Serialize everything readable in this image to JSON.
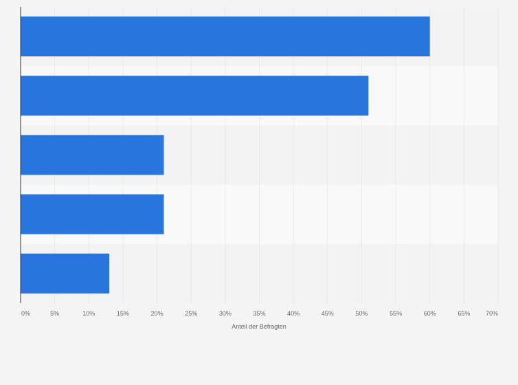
{
  "chart_data": {
    "type": "bar",
    "orientation": "horizontal",
    "categories": [
      "",
      "",
      "",
      "",
      ""
    ],
    "values": [
      60,
      51,
      21,
      21,
      13
    ],
    "xlabel": "Anteil der Befragten",
    "ylabel": "",
    "xlim": [
      0,
      70
    ],
    "ticks": [
      "0%",
      "5%",
      "10%",
      "15%",
      "20%",
      "25%",
      "30%",
      "35%",
      "40%",
      "45%",
      "50%",
      "55%",
      "60%",
      "65%",
      "70%"
    ],
    "grid": true,
    "colors": {
      "bar": "#2876dd",
      "band_odd": "#f3f3f3",
      "band_even": "#f9f9f9",
      "background": "#f4f4f4",
      "grid": "#dedede",
      "axis": "#333333",
      "tick_text": "#666666"
    }
  }
}
